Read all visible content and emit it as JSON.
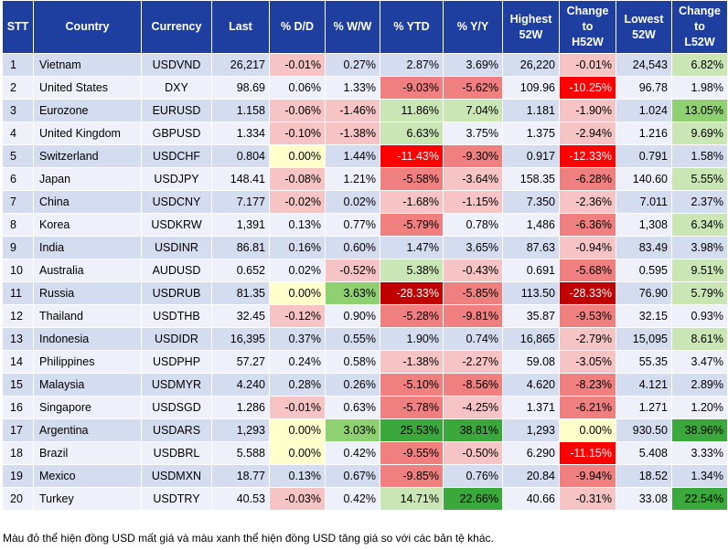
{
  "headers": [
    "STT",
    "Country",
    "Currency",
    "Last",
    "% D/D",
    "% W/W",
    "% YTD",
    "% Y/Y",
    "Highest\n52W",
    "Change\nto\nH52W",
    "Lowest\n52W",
    "Change\nto\nL52W"
  ],
  "header_ids": [
    "stt",
    "country",
    "currency",
    "last",
    "dd",
    "ww",
    "ytd",
    "yy",
    "high52w",
    "change-h52w",
    "low52w",
    "change-l52w"
  ],
  "colors": {
    "header_bg": "#1f3fa0",
    "neg_dark": "#c00000",
    "neg_strong": "#ff0000",
    "neg_mid": "#f08080",
    "neg_light": "#f6c4c4",
    "pos_light": "#c9e6b4",
    "pos_mid": "#8fd070",
    "pos_strong": "#3aa83a",
    "neutral": "#ffffcc"
  },
  "rows": [
    {
      "stt": "1",
      "country": "Vietnam",
      "currency": "USDVND",
      "last": "26,217",
      "dd": "-0.01%",
      "ww": "0.27%",
      "ytd": "2.87%",
      "yy": "3.69%",
      "high52w": "26,220",
      "ch52w": "-0.01%",
      "low52w": "24,543",
      "cl52w": "6.82%"
    },
    {
      "stt": "2",
      "country": "United States",
      "currency": "DXY",
      "last": "98.69",
      "dd": "0.06%",
      "ww": "1.33%",
      "ytd": "-9.03%",
      "yy": "-5.62%",
      "high52w": "109.96",
      "ch52w": "-10.25%",
      "low52w": "96.78",
      "cl52w": "1.98%"
    },
    {
      "stt": "3",
      "country": "Eurozone",
      "currency": "EURUSD",
      "last": "1.158",
      "dd": "-0.06%",
      "ww": "-1.46%",
      "ytd": "11.86%",
      "yy": "7.04%",
      "high52w": "1.181",
      "ch52w": "-1.90%",
      "low52w": "1.024",
      "cl52w": "13.05%"
    },
    {
      "stt": "4",
      "country": "United Kingdom",
      "currency": "GBPUSD",
      "last": "1.334",
      "dd": "-0.10%",
      "ww": "-1.38%",
      "ytd": "6.63%",
      "yy": "3.75%",
      "high52w": "1.375",
      "ch52w": "-2.94%",
      "low52w": "1.216",
      "cl52w": "9.69%"
    },
    {
      "stt": "5",
      "country": "Switzerland",
      "currency": "USDCHF",
      "last": "0.804",
      "dd": "0.00%",
      "ww": "1.44%",
      "ytd": "-11.43%",
      "yy": "-9.30%",
      "high52w": "0.917",
      "ch52w": "-12.33%",
      "low52w": "0.791",
      "cl52w": "1.58%"
    },
    {
      "stt": "6",
      "country": "Japan",
      "currency": "USDJPY",
      "last": "148.41",
      "dd": "-0.08%",
      "ww": "1.21%",
      "ytd": "-5.58%",
      "yy": "-3.64%",
      "high52w": "158.35",
      "ch52w": "-6.28%",
      "low52w": "140.60",
      "cl52w": "5.55%"
    },
    {
      "stt": "7",
      "country": "China",
      "currency": "USDCNY",
      "last": "7.177",
      "dd": "-0.02%",
      "ww": "0.02%",
      "ytd": "-1.68%",
      "yy": "-1.15%",
      "high52w": "7.350",
      "ch52w": "-2.36%",
      "low52w": "7.011",
      "cl52w": "2.37%"
    },
    {
      "stt": "8",
      "country": "Korea",
      "currency": "USDKRW",
      "last": "1,391",
      "dd": "0.13%",
      "ww": "0.77%",
      "ytd": "-5.79%",
      "yy": "0.78%",
      "high52w": "1,486",
      "ch52w": "-6.36%",
      "low52w": "1,308",
      "cl52w": "6.34%"
    },
    {
      "stt": "9",
      "country": "India",
      "currency": "USDINR",
      "last": "86.81",
      "dd": "0.16%",
      "ww": "0.60%",
      "ytd": "1.47%",
      "yy": "3.65%",
      "high52w": "87.63",
      "ch52w": "-0.94%",
      "low52w": "83.49",
      "cl52w": "3.98%"
    },
    {
      "stt": "10",
      "country": "Australia",
      "currency": "AUDUSD",
      "last": "0.652",
      "dd": "0.02%",
      "ww": "-0.52%",
      "ytd": "5.38%",
      "yy": "-0.43%",
      "high52w": "0.691",
      "ch52w": "-5.68%",
      "low52w": "0.595",
      "cl52w": "9.51%"
    },
    {
      "stt": "11",
      "country": "Russia",
      "currency": "USDRUB",
      "last": "81.35",
      "dd": "0.00%",
      "ww": "3.63%",
      "ytd": "-28.33%",
      "yy": "-5.85%",
      "high52w": "113.50",
      "ch52w": "-28.33%",
      "low52w": "76.90",
      "cl52w": "5.79%"
    },
    {
      "stt": "12",
      "country": "Thailand",
      "currency": "USDTHB",
      "last": "32.45",
      "dd": "-0.12%",
      "ww": "0.90%",
      "ytd": "-5.28%",
      "yy": "-9.81%",
      "high52w": "35.87",
      "ch52w": "-9.53%",
      "low52w": "32.15",
      "cl52w": "0.93%"
    },
    {
      "stt": "13",
      "country": "Indonesia",
      "currency": "USDIDR",
      "last": "16,395",
      "dd": "0.37%",
      "ww": "0.55%",
      "ytd": "1.90%",
      "yy": "0.74%",
      "high52w": "16,865",
      "ch52w": "-2.79%",
      "low52w": "15,095",
      "cl52w": "8.61%"
    },
    {
      "stt": "14",
      "country": "Philippines",
      "currency": "USDPHP",
      "last": "57.27",
      "dd": "0.24%",
      "ww": "0.58%",
      "ytd": "-1.38%",
      "yy": "-2.27%",
      "high52w": "59.08",
      "ch52w": "-3.05%",
      "low52w": "55.35",
      "cl52w": "3.47%"
    },
    {
      "stt": "15",
      "country": "Malaysia",
      "currency": "USDMYR",
      "last": "4.240",
      "dd": "0.28%",
      "ww": "0.26%",
      "ytd": "-5.10%",
      "yy": "-8.56%",
      "high52w": "4.620",
      "ch52w": "-8.23%",
      "low52w": "4.121",
      "cl52w": "2.89%"
    },
    {
      "stt": "16",
      "country": "Singapore",
      "currency": "USDSGD",
      "last": "1.286",
      "dd": "-0.01%",
      "ww": "0.63%",
      "ytd": "-5.78%",
      "yy": "-4.25%",
      "high52w": "1.371",
      "ch52w": "-6.21%",
      "low52w": "1.271",
      "cl52w": "1.20%"
    },
    {
      "stt": "17",
      "country": "Argentina",
      "currency": "USDARS",
      "last": "1,293",
      "dd": "0.00%",
      "ww": "3.03%",
      "ytd": "25.53%",
      "yy": "38.81%",
      "high52w": "1,293",
      "ch52w": "0.00%",
      "low52w": "930.50",
      "cl52w": "38.96%"
    },
    {
      "stt": "18",
      "country": "Brazil",
      "currency": "USDBRL",
      "last": "5.588",
      "dd": "0.00%",
      "ww": "0.42%",
      "ytd": "-9.55%",
      "yy": "-0.50%",
      "high52w": "6.290",
      "ch52w": "-11.15%",
      "low52w": "5.408",
      "cl52w": "3.33%"
    },
    {
      "stt": "19",
      "country": "Mexico",
      "currency": "USDMXN",
      "last": "18.77",
      "dd": "0.13%",
      "ww": "0.67%",
      "ytd": "-9.85%",
      "yy": "0.76%",
      "high52w": "20.84",
      "ch52w": "-9.94%",
      "low52w": "18.52",
      "cl52w": "1.34%"
    },
    {
      "stt": "20",
      "country": "Turkey",
      "currency": "USDTRY",
      "last": "40.53",
      "dd": "-0.03%",
      "ww": "0.42%",
      "ytd": "14.71%",
      "yy": "22.66%",
      "high52w": "40.66",
      "ch52w": "-0.31%",
      "low52w": "33.08",
      "cl52w": "22.54%"
    }
  ],
  "footnote": "Màu đỏ thể hiện đồng USD mất giá và màu xanh thể hiện đồng USD tăng giá so với các bản tệ khác."
}
